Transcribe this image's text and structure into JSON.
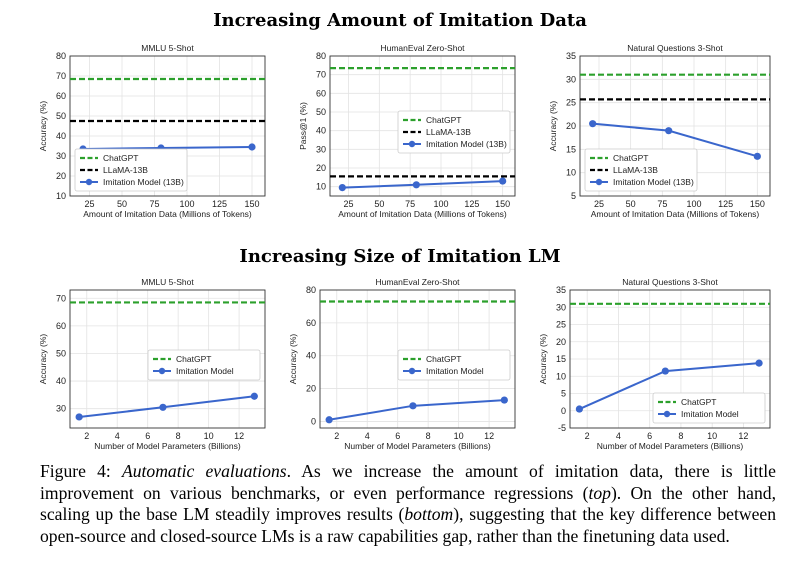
{
  "figure": {
    "top_title": "Increasing Amount of Imitation Data",
    "bottom_title": "Increasing Size of Imitation LM",
    "caption": {
      "label": "Figure 4:",
      "emph": "Automatic evaluations",
      "line1_rest": ". As we increase the amount of imitation data, there is little",
      "line2_pre": "improvement on various benchmarks, or even performance regressions (",
      "line2_emph": "top",
      "line2_post": "). On the other hand,",
      "line3_pre": "scaling up the base LM steadily improves results (",
      "line3_emph": "bottom",
      "line3_post": "), suggesting that the key difference between",
      "line4": "open-source and closed-source LMs is a raw capabilities gap, rather than the finetuning data used."
    }
  },
  "colors": {
    "chatgpt": "#2ca02c",
    "llama": "#000000",
    "imitation": "#3a66cc"
  },
  "chart_data": [
    {
      "type": "line",
      "title": "MMLU 5-Shot",
      "xlabel": "Amount of Imitation Data (Millions of Tokens)",
      "ylabel": "Accuracy (%)",
      "xlim": [
        10,
        160
      ],
      "ylim": [
        10,
        80
      ],
      "xticks": [
        25,
        50,
        75,
        100,
        125,
        150
      ],
      "yticks": [
        10,
        20,
        30,
        40,
        50,
        60,
        70,
        80
      ],
      "hlines": [
        {
          "name": "ChatGPT",
          "value": 68.5,
          "color": "chatgpt"
        },
        {
          "name": "LLaMA-13B",
          "value": 47.5,
          "color": "llama"
        }
      ],
      "series": [
        {
          "name": "Imitation Model (13B)",
          "x": [
            20,
            80,
            150
          ],
          "values": [
            33.5,
            34.0,
            34.5
          ],
          "color": "imitation"
        }
      ],
      "legend": "bottom-left"
    },
    {
      "type": "line",
      "title": "HumanEval Zero-Shot",
      "xlabel": "Amount of Imitation Data (Millions of Tokens)",
      "ylabel": "Pass@1 (%)",
      "xlim": [
        10,
        160
      ],
      "ylim": [
        5,
        80
      ],
      "xticks": [
        25,
        50,
        75,
        100,
        125,
        150
      ],
      "yticks": [
        10,
        20,
        30,
        40,
        50,
        60,
        70,
        80
      ],
      "hlines": [
        {
          "name": "ChatGPT",
          "value": 73.5,
          "color": "chatgpt"
        },
        {
          "name": "LLaMA-13B",
          "value": 15.5,
          "color": "llama"
        }
      ],
      "series": [
        {
          "name": "Imitation Model (13B)",
          "x": [
            20,
            80,
            150
          ],
          "values": [
            9.5,
            11.0,
            13.0
          ],
          "color": "imitation"
        }
      ],
      "legend": "center-right"
    },
    {
      "type": "line",
      "title": "Natural Questions 3-Shot",
      "xlabel": "Amount of Imitation Data (Millions of Tokens)",
      "ylabel": "Accuracy (%)",
      "xlim": [
        10,
        160
      ],
      "ylim": [
        5,
        35
      ],
      "xticks": [
        25,
        50,
        75,
        100,
        125,
        150
      ],
      "yticks": [
        5,
        10,
        15,
        20,
        25,
        30,
        35
      ],
      "hlines": [
        {
          "name": "ChatGPT",
          "value": 31,
          "color": "chatgpt"
        },
        {
          "name": "LLaMA-13B",
          "value": 25.7,
          "color": "llama"
        }
      ],
      "series": [
        {
          "name": "Imitation Model (13B)",
          "x": [
            20,
            80,
            150
          ],
          "values": [
            20.5,
            19.0,
            13.5
          ],
          "color": "imitation"
        }
      ],
      "legend": "bottom-left"
    },
    {
      "type": "line",
      "title": "MMLU 5-Shot",
      "xlabel": "Number of Model Parameters (Billions)",
      "ylabel": "Accuracy (%)",
      "xlim": [
        0.9,
        13.7
      ],
      "ylim": [
        23,
        73
      ],
      "xticks": [
        2,
        4,
        6,
        8,
        10,
        12
      ],
      "yticks": [
        30,
        40,
        50,
        60,
        70
      ],
      "hlines": [
        {
          "name": "ChatGPT",
          "value": 68.5,
          "color": "chatgpt"
        }
      ],
      "series": [
        {
          "name": "Imitation Model",
          "x": [
            1.5,
            7,
            13
          ],
          "values": [
            27,
            30.5,
            34.5
          ],
          "color": "imitation"
        }
      ],
      "legend": "center-right"
    },
    {
      "type": "line",
      "title": "HumanEval Zero-Shot",
      "xlabel": "Number of Model Parameters (Billions)",
      "ylabel": "Accuracy (%)",
      "xlim": [
        0.9,
        13.7
      ],
      "ylim": [
        -4,
        80
      ],
      "xticks": [
        2,
        4,
        6,
        8,
        10,
        12
      ],
      "yticks": [
        0,
        20,
        40,
        60,
        80
      ],
      "hlines": [
        {
          "name": "ChatGPT",
          "value": 73,
          "color": "chatgpt"
        }
      ],
      "series": [
        {
          "name": "Imitation Model",
          "x": [
            1.5,
            7,
            13
          ],
          "values": [
            1,
            9.5,
            13
          ],
          "color": "imitation"
        }
      ],
      "legend": "center-right"
    },
    {
      "type": "line",
      "title": "Natural Questions 3-Shot",
      "xlabel": "Number of Model Parameters (Billions)",
      "ylabel": "Accuracy (%)",
      "xlim": [
        0.9,
        13.7
      ],
      "ylim": [
        -5,
        35
      ],
      "xticks": [
        2,
        4,
        6,
        8,
        10,
        12
      ],
      "yticks": [
        -5,
        0,
        5,
        10,
        15,
        20,
        25,
        30,
        35
      ],
      "hlines": [
        {
          "name": "ChatGPT",
          "value": 31,
          "color": "chatgpt"
        }
      ],
      "series": [
        {
          "name": "Imitation Model",
          "x": [
            1.5,
            7,
            13
          ],
          "values": [
            0.5,
            11.5,
            13.8
          ],
          "color": "imitation"
        }
      ],
      "legend": "bottom-right"
    }
  ]
}
